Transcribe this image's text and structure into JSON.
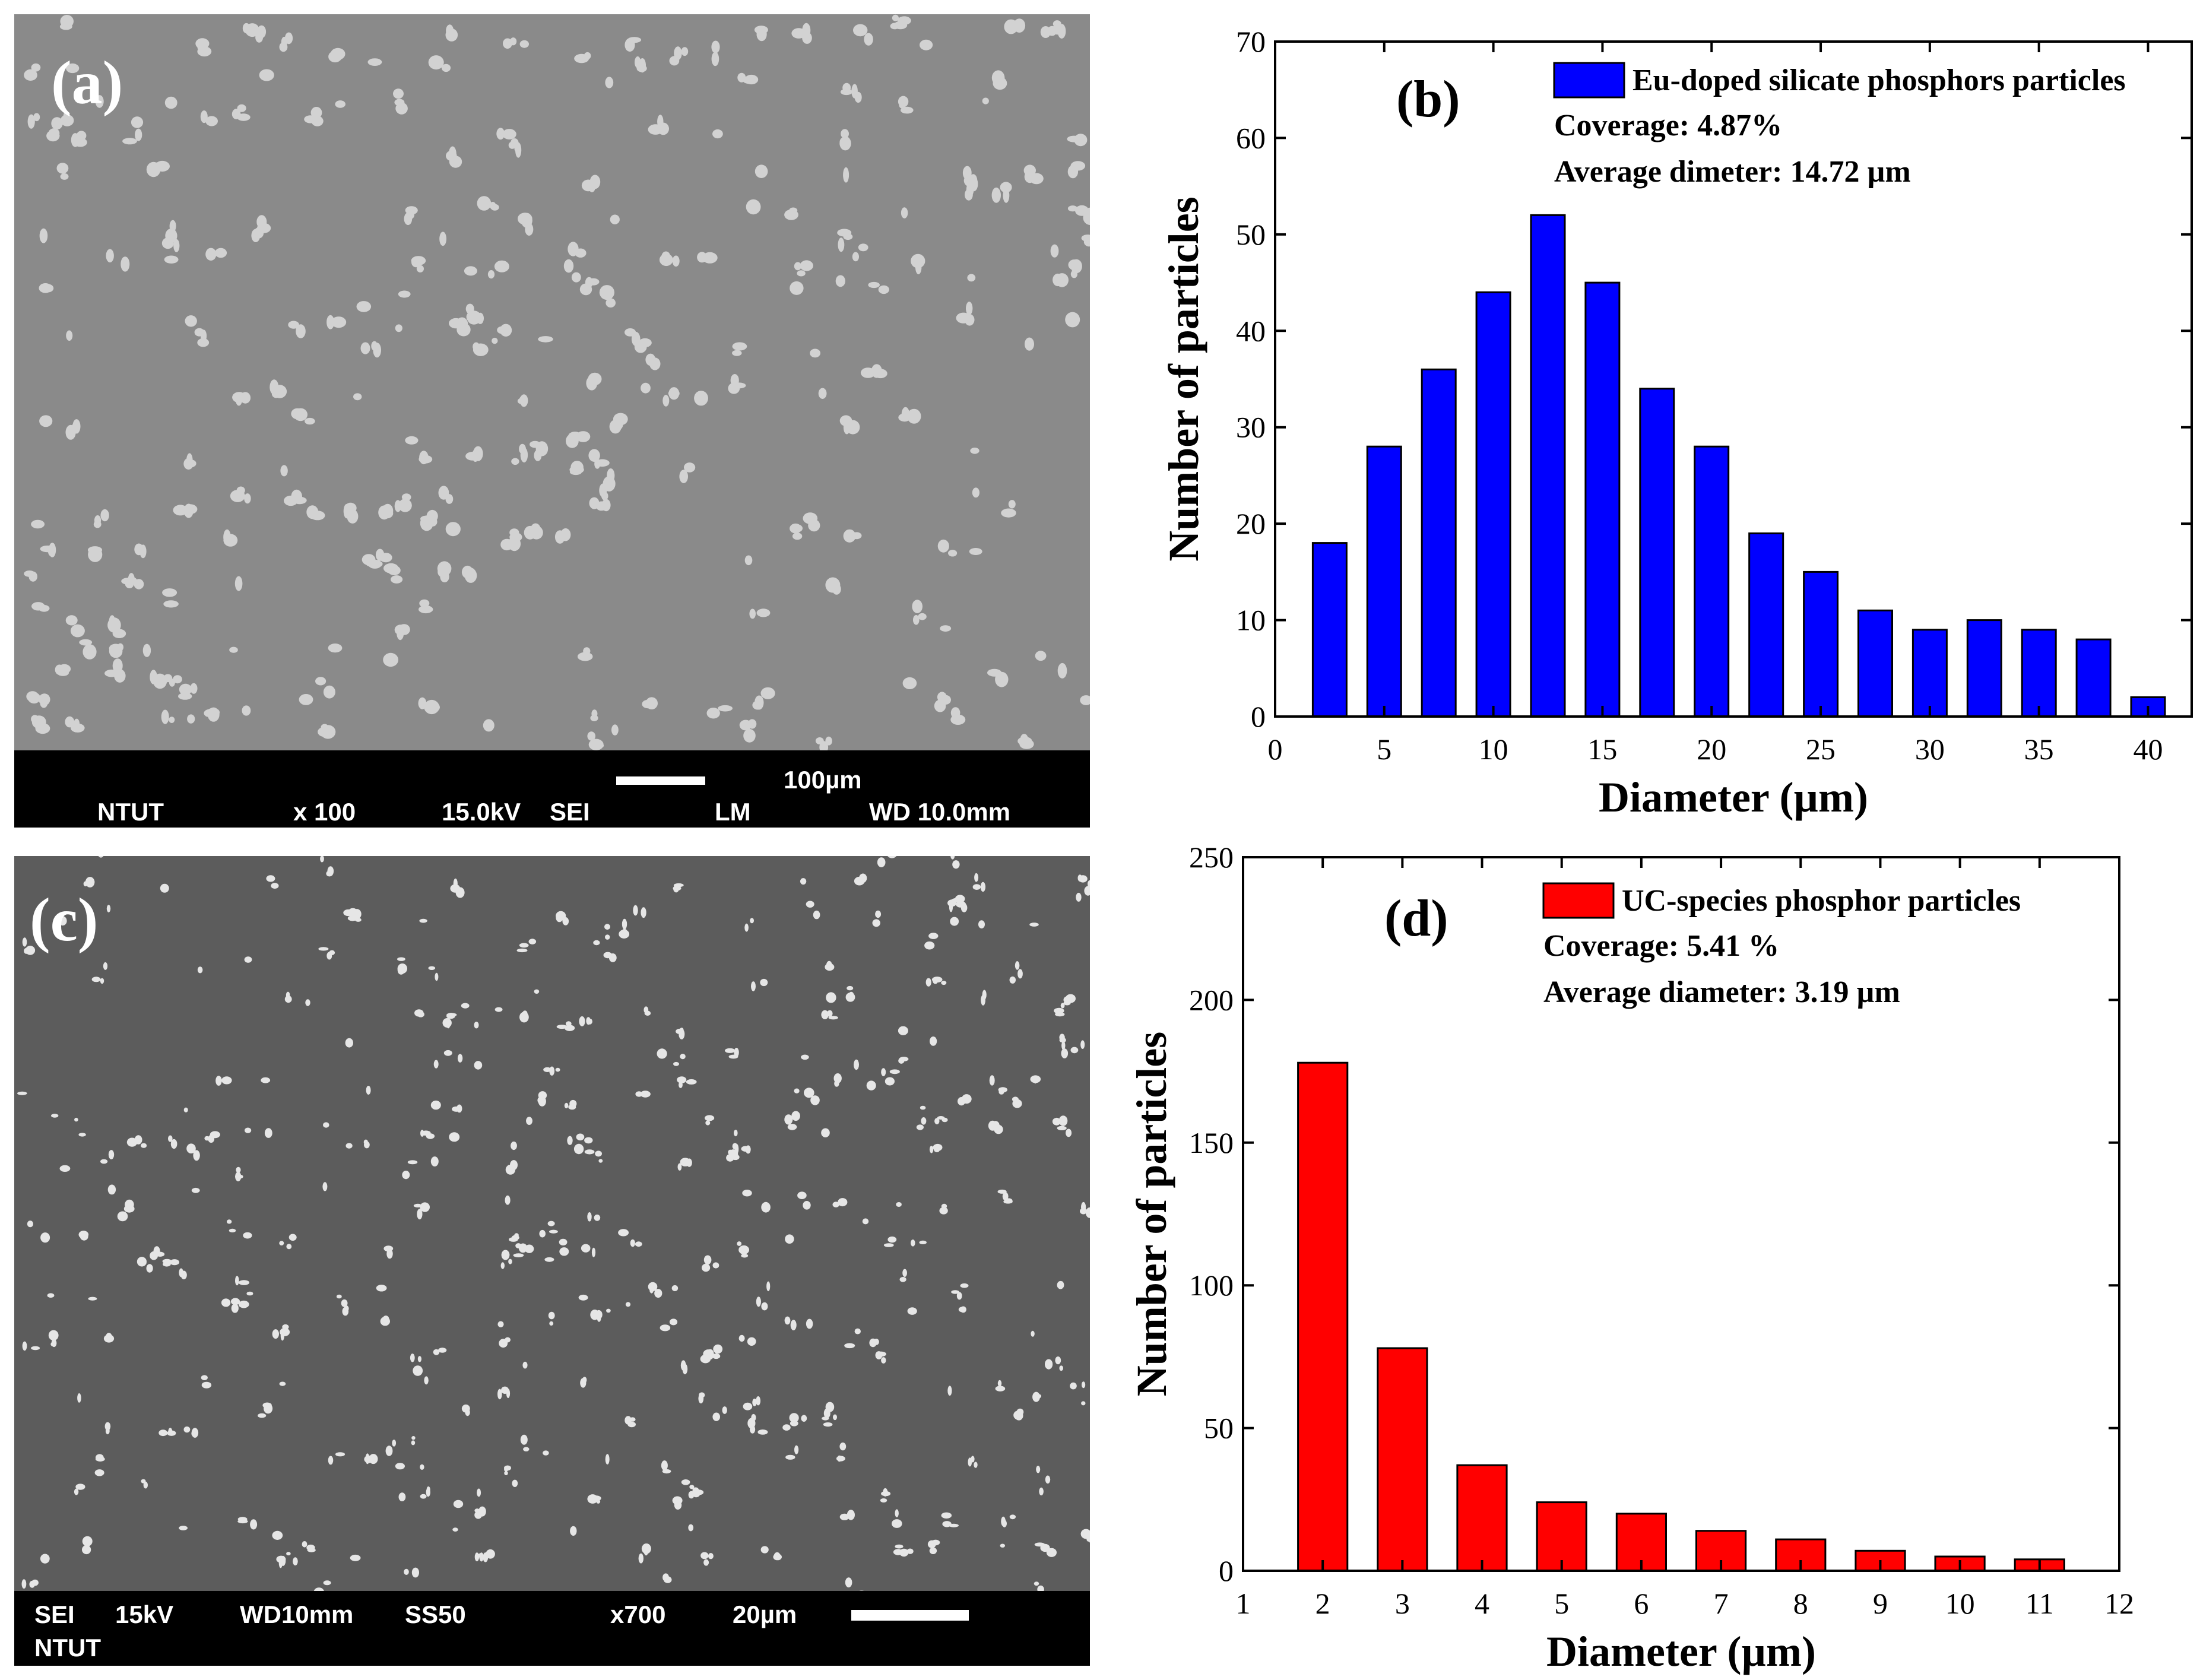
{
  "panel_a": {
    "label": "(a)",
    "scale_text": "100µm",
    "info": {
      "org": "NTUT",
      "mag": "x 100",
      "kv": "15.0kV",
      "mode": "SEI",
      "lm": "LM",
      "wd": "WD 10.0mm"
    }
  },
  "panel_c": {
    "label": "(c)",
    "org": "NTUT",
    "info": {
      "mode": "SEI",
      "kv": "15kV",
      "wd": "WD10mm",
      "ss": "SS50",
      "mag": "x700",
      "scale_text": "20µm"
    }
  },
  "chart_data": [
    {
      "type": "bar",
      "panel": "(b)",
      "categories": [
        2.5,
        5,
        7.5,
        10,
        12.5,
        15,
        17.5,
        20,
        22.5,
        25,
        27.5,
        30,
        32.5,
        35,
        37.5,
        40
      ],
      "values": [
        18,
        28,
        36,
        44,
        52,
        45,
        34,
        28,
        19,
        15,
        11,
        9,
        10,
        9,
        8,
        2
      ],
      "xlabel": "Diameter (µm)",
      "ylabel": "Number of particles",
      "xlim": [
        0,
        42
      ],
      "ylim": [
        0,
        70
      ],
      "xticks": [
        0,
        5,
        10,
        15,
        20,
        25,
        30,
        35,
        40
      ],
      "yticks": [
        0,
        10,
        20,
        30,
        40,
        50,
        60,
        70
      ],
      "bar_color": "#0000ff",
      "legend": "Eu-doped silicate phosphors particles",
      "annotations": [
        "Coverage: 4.87%",
        "Average dimeter: 14.72 µm"
      ]
    },
    {
      "type": "bar",
      "panel": "(d)",
      "categories": [
        2,
        3,
        4,
        5,
        6,
        7,
        8,
        9,
        10,
        11
      ],
      "values": [
        178,
        78,
        37,
        24,
        20,
        14,
        11,
        7,
        5,
        4
      ],
      "xlabel": "Diameter (µm)",
      "ylabel": "Number of particles",
      "xlim": [
        1,
        12
      ],
      "ylim": [
        0,
        250
      ],
      "xticks": [
        1,
        2,
        3,
        4,
        5,
        6,
        7,
        8,
        9,
        10,
        11,
        12
      ],
      "yticks": [
        0,
        50,
        100,
        150,
        200,
        250
      ],
      "bar_color": "#ff0000",
      "legend": "UC-species phosphor particles",
      "annotations": [
        "Coverage: 5.41 %",
        "Average diameter: 3.19 µm"
      ]
    }
  ]
}
